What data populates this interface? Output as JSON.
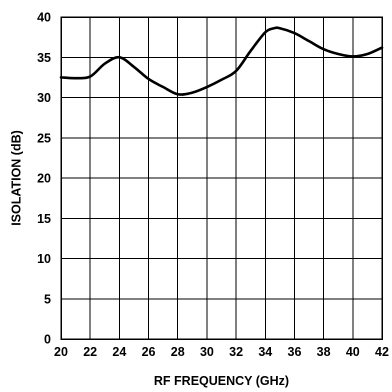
{
  "chart_data": {
    "type": "line",
    "title": "",
    "xlabel": "RF FREQUENCY (GHz)",
    "ylabel": "ISOLATION (dB)",
    "xlim": [
      20,
      42
    ],
    "ylim": [
      0,
      40
    ],
    "xticks": [
      20,
      22,
      24,
      26,
      28,
      30,
      32,
      34,
      36,
      38,
      40,
      42
    ],
    "yticks": [
      0,
      5,
      10,
      15,
      20,
      25,
      30,
      35,
      40
    ],
    "grid": true,
    "series": [
      {
        "x": [
          20,
          21,
          22,
          23,
          24,
          25,
          26,
          27,
          28,
          29,
          30,
          31,
          32,
          33,
          34,
          34.6,
          35,
          36,
          37,
          38,
          39,
          40,
          41,
          42
        ],
        "y": [
          32.5,
          32.4,
          32.6,
          34.2,
          35.0,
          33.8,
          32.3,
          31.3,
          30.4,
          30.6,
          31.3,
          32.2,
          33.3,
          35.8,
          38.1,
          38.6,
          38.6,
          38.0,
          37.0,
          36.0,
          35.4,
          35.1,
          35.4,
          36.2
        ]
      }
    ]
  }
}
